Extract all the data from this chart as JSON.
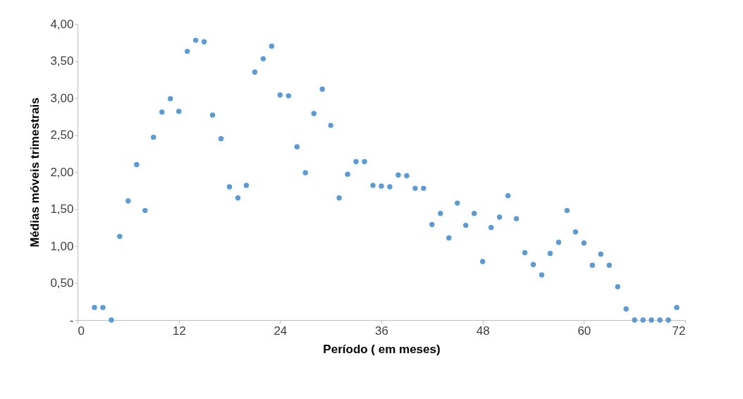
{
  "chart_data": {
    "type": "scatter",
    "xlabel": "Período ( em meses)",
    "ylabel": "Médias móveis trimestrais",
    "x": [
      2,
      3,
      4,
      5,
      6,
      7,
      8,
      9,
      10,
      11,
      12,
      13,
      14,
      15,
      16,
      17,
      18,
      19,
      20,
      21,
      22,
      23,
      24,
      25,
      26,
      27,
      28,
      29,
      30,
      31,
      32,
      33,
      34,
      35,
      36,
      37,
      38,
      39,
      40,
      41,
      42,
      43,
      44,
      45,
      46,
      47,
      48,
      49,
      50,
      51,
      52,
      53,
      54,
      55,
      56,
      57,
      58,
      59,
      60,
      61,
      62,
      63,
      64,
      65,
      66,
      67,
      68,
      69,
      70,
      71
    ],
    "series": [
      {
        "color": "#5b9bd5",
        "values": [
          0.17,
          0.17,
          0.0,
          1.13,
          1.61,
          2.1,
          1.48,
          2.47,
          2.81,
          2.99,
          2.82,
          3.63,
          3.78,
          3.76,
          2.77,
          2.45,
          1.8,
          1.65,
          1.82,
          3.35,
          3.53,
          3.7,
          3.04,
          3.03,
          2.34,
          1.99,
          2.79,
          3.12,
          2.63,
          1.65,
          1.97,
          2.14,
          2.14,
          1.82,
          1.81,
          1.8,
          1.96,
          1.95,
          1.78,
          1.78,
          1.29,
          1.44,
          1.11,
          1.58,
          1.28,
          1.44,
          0.79,
          1.25,
          1.39,
          1.68,
          1.37,
          0.91,
          0.75,
          0.61,
          0.9,
          1.05,
          1.48,
          1.19,
          1.04,
          0.74,
          0.89,
          0.74,
          0.45,
          0.15,
          0.0,
          0.0,
          0.0,
          0.0,
          0.0,
          0.17
        ]
      }
    ],
    "xlim": [
      0,
      72
    ],
    "xticks": [
      0,
      12,
      24,
      36,
      48,
      60,
      72
    ],
    "ylim": [
      0,
      4
    ],
    "yticks": [
      {
        "value": 0,
        "label": "-"
      },
      {
        "value": 0.5,
        "label": "0,50"
      },
      {
        "value": 1,
        "label": "1,00"
      },
      {
        "value": 1.5,
        "label": "1,50"
      },
      {
        "value": 2,
        "label": "2,00"
      },
      {
        "value": 2.5,
        "label": "2,50"
      },
      {
        "value": 3,
        "label": "3,00"
      },
      {
        "value": 3.5,
        "label": "3,50"
      },
      {
        "value": 4,
        "label": "4,00"
      }
    ],
    "grid": false,
    "legend": false,
    "marker": "circle"
  }
}
